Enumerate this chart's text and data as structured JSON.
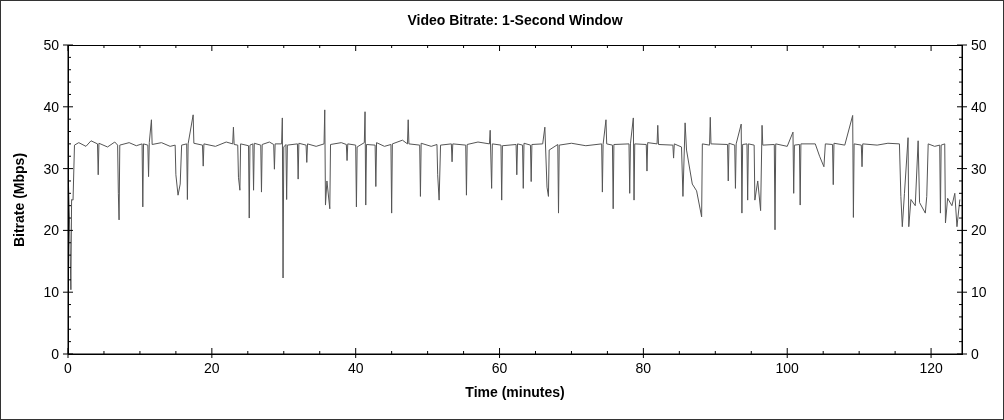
{
  "chart_data": {
    "type": "line",
    "title": "Video Bitrate: 1-Second Window",
    "xlabel": "Time (minutes)",
    "ylabel": "Bitrate (Mbps)",
    "x": [
      0,
      0.2,
      0.4,
      0.5,
      0.7,
      0.9,
      1.5,
      2.5,
      3.2,
      4.1,
      4.2,
      4.3,
      5.5,
      6.5,
      6.9,
      7.0,
      7.1,
      7.2,
      8.5,
      9.5,
      10.3,
      10.4,
      10.5,
      11.1,
      11.2,
      11.3,
      11.6,
      11.7,
      13.0,
      14.2,
      14.9,
      15.0,
      15.3,
      15.6,
      15.8,
      16.5,
      16.6,
      16.7,
      17.4,
      17.5,
      18.7,
      18.8,
      18.9,
      20.5,
      22.0,
      22.9,
      23.0,
      23.1,
      23.6,
      23.7,
      23.9,
      24.0,
      25.1,
      25.2,
      25.3,
      25.7,
      25.8,
      25.9,
      26.8,
      26.9,
      27.0,
      28.0,
      28.6,
      28.7,
      28.8,
      29.7,
      29.8,
      29.9,
      30.0,
      30.3,
      30.4,
      30.5,
      31.9,
      32.0,
      32.1,
      33.1,
      33.2,
      33.3,
      34.5,
      35.6,
      35.7,
      35.8,
      36.0,
      36.4,
      36.5,
      38.0,
      38.7,
      38.8,
      38.9,
      40.0,
      40.1,
      40.2,
      41.2,
      41.3,
      41.4,
      41.5,
      42.7,
      42.8,
      42.9,
      44.0,
      44.9,
      45.0,
      45.1,
      46.5,
      47.2,
      47.3,
      47.4,
      48.9,
      49.0,
      49.1,
      50.5,
      51.3,
      51.4,
      51.6,
      51.8,
      53.3,
      53.4,
      53.5,
      55.3,
      55.4,
      55.5,
      57.0,
      58.6,
      58.7,
      58.9,
      59.0,
      60.2,
      60.3,
      60.4,
      62.3,
      62.4,
      62.5,
      63.2,
      63.3,
      63.4,
      64.3,
      64.4,
      64.5,
      66.0,
      66.3,
      66.6,
      66.8,
      66.9,
      68.1,
      68.2,
      68.3,
      70.0,
      72.0,
      74.2,
      74.3,
      74.4,
      74.8,
      74.9,
      75.7,
      75.8,
      75.9,
      78.0,
      78.1,
      78.2,
      78.6,
      78.7,
      78.8,
      80.4,
      80.5,
      80.6,
      81.9,
      82.0,
      82.1,
      84.1,
      84.2,
      84.3,
      85.3,
      85.5,
      85.8,
      86.0,
      86.8,
      87.4,
      88.1,
      88.2,
      89.2,
      89.3,
      89.4,
      91.7,
      91.8,
      91.9,
      92.7,
      92.8,
      92.9,
      93.6,
      93.7,
      93.8,
      94.4,
      94.5,
      94.6,
      95.4,
      95.5,
      95.9,
      96.3,
      96.5,
      96.6,
      98.2,
      98.3,
      98.4,
      100.0,
      100.8,
      100.9,
      101.0,
      101.7,
      101.8,
      101.9,
      103.9,
      104.5,
      105.1,
      105.3,
      106.3,
      106.4,
      106.5,
      108.0,
      109.1,
      109.2,
      109.3,
      110.3,
      110.4,
      110.5,
      112.5,
      114.0,
      115.6,
      115.8,
      116.0,
      116.3,
      116.8,
      116.9,
      117.2,
      117.8,
      118.2,
      118.4,
      119.2,
      119.4,
      119.6,
      120.5,
      121.2,
      121.3,
      121.4,
      121.9,
      122.0,
      122.3,
      122.9,
      123.3,
      123.6,
      124.0
    ],
    "series": [
      {
        "color": "#555555",
        "values": [
          30,
          22,
          10.4,
          25,
          24.9,
          33.8,
          34.2,
          33.6,
          34.5,
          34.0,
          29.0,
          34.1,
          33.5,
          34.3,
          33.8,
          26.0,
          21.7,
          33.8,
          34.2,
          33.7,
          34.0,
          23.8,
          34.0,
          33.8,
          28.7,
          34.2,
          37.9,
          33.9,
          34.2,
          33.6,
          33.8,
          29.0,
          25.7,
          27.5,
          33.8,
          34.0,
          25.0,
          34.0,
          38.7,
          34.1,
          33.8,
          30.4,
          34.0,
          33.6,
          34.3,
          34.0,
          36.7,
          33.9,
          33.8,
          28.6,
          26.5,
          34.0,
          33.7,
          22.0,
          33.8,
          34.0,
          26.5,
          34.1,
          33.8,
          26.2,
          33.9,
          34.3,
          33.9,
          29.9,
          34.0,
          34.0,
          38.2,
          12.3,
          33.5,
          33.9,
          25.0,
          33.8,
          34.0,
          28.3,
          34.1,
          33.8,
          31.0,
          34.0,
          33.6,
          34.0,
          39.5,
          24.1,
          28.0,
          23.5,
          33.9,
          34.2,
          33.9,
          31.3,
          34.0,
          33.8,
          23.8,
          33.5,
          34.2,
          39.2,
          24.1,
          33.9,
          33.8,
          27.1,
          34.2,
          33.6,
          33.9,
          22.8,
          34.0,
          34.6,
          34.0,
          37.9,
          34.0,
          33.8,
          25.5,
          34.1,
          33.6,
          33.9,
          29.0,
          24.9,
          33.8,
          34.0,
          31.1,
          34.0,
          33.8,
          25.7,
          33.9,
          34.3,
          34.0,
          36.2,
          26.8,
          34.0,
          33.8,
          24.9,
          33.7,
          33.9,
          29.0,
          34.0,
          33.8,
          26.8,
          34.1,
          33.8,
          27.9,
          33.9,
          34.0,
          36.7,
          27.0,
          25.5,
          33.0,
          33.9,
          22.8,
          33.8,
          34.1,
          33.7,
          34.0,
          26.2,
          33.9,
          37.9,
          34.0,
          33.8,
          23.5,
          33.9,
          34.0,
          26.0,
          34.0,
          38.2,
          24.9,
          34.0,
          33.9,
          29.6,
          34.2,
          34.0,
          37.0,
          33.9,
          33.8,
          31.7,
          34.0,
          33.5,
          25.5,
          37.4,
          33.0,
          27.5,
          26.4,
          22.2,
          34.0,
          33.8,
          38.3,
          34.0,
          33.9,
          28.0,
          34.1,
          33.8,
          26.8,
          34.0,
          37.2,
          22.8,
          33.9,
          34.0,
          24.9,
          34.0,
          33.8,
          24.9,
          28,
          23.2,
          37.0,
          33.8,
          33.9,
          20.1,
          34.0,
          33.6,
          35.9,
          26.0,
          33.8,
          33.9,
          24.1,
          34.0,
          34.0,
          32.0,
          30.3,
          34.0,
          33.9,
          27.4,
          34.1,
          33.8,
          38.6,
          22.1,
          34.0,
          33.8,
          30.3,
          34.0,
          33.8,
          34.1,
          34.0,
          25.5,
          20.6,
          26.0,
          35.0,
          20.6,
          25.0,
          24.0,
          34.5,
          24.5,
          22.8,
          25.5,
          34.0,
          33.6,
          33.8,
          22.8,
          33.8,
          34.0,
          21.2,
          25.2,
          24.0,
          26.0,
          20.6,
          25.0
        ]
      }
    ],
    "xlim": [
      0,
      124.3
    ],
    "xticks": [
      0,
      {
        "value": 5,
        "label": null
      },
      {
        "value": 10,
        "label": null
      },
      {
        "value": 15,
        "label": null
      },
      20,
      {
        "value": 25,
        "label": null
      },
      {
        "value": 30,
        "label": null
      },
      {
        "value": 35,
        "label": null
      },
      40,
      {
        "value": 45,
        "label": null
      },
      {
        "value": 50,
        "label": null
      },
      {
        "value": 55,
        "label": null
      },
      60,
      {
        "value": 65,
        "label": null
      },
      {
        "value": 70,
        "label": null
      },
      {
        "value": 75,
        "label": null
      },
      80,
      {
        "value": 85,
        "label": null
      },
      {
        "value": 90,
        "label": null
      },
      {
        "value": 95,
        "label": null
      },
      100,
      {
        "value": 105,
        "label": null
      },
      {
        "value": 110,
        "label": null
      },
      {
        "value": 115,
        "label": null
      },
      120
    ],
    "ylim": [
      0,
      50
    ],
    "yticks": [
      0,
      {
        "value": 2,
        "label": null
      },
      {
        "value": 4,
        "label": null
      },
      {
        "value": 6,
        "label": null
      },
      {
        "value": 8,
        "label": null
      },
      10,
      {
        "value": 12,
        "label": null
      },
      {
        "value": 14,
        "label": null
      },
      {
        "value": 16,
        "label": null
      },
      {
        "value": 18,
        "label": null
      },
      20,
      {
        "value": 22,
        "label": null
      },
      {
        "value": 24,
        "label": null
      },
      {
        "value": 26,
        "label": null
      },
      {
        "value": 28,
        "label": null
      },
      30,
      {
        "value": 32,
        "label": null
      },
      {
        "value": 34,
        "label": null
      },
      {
        "value": 36,
        "label": null
      },
      {
        "value": 38,
        "label": null
      },
      40,
      {
        "value": 42,
        "label": null
      },
      {
        "value": 44,
        "label": null
      },
      {
        "value": 46,
        "label": null
      },
      {
        "value": 48,
        "label": null
      },
      50
    ],
    "y2lim": [
      0,
      50
    ],
    "y2ticks": [
      0,
      {
        "value": 2,
        "label": null
      },
      {
        "value": 4,
        "label": null
      },
      {
        "value": 6,
        "label": null
      },
      {
        "value": 8,
        "label": null
      },
      10,
      {
        "value": 12,
        "label": null
      },
      {
        "value": 14,
        "label": null
      },
      {
        "value": 16,
        "label": null
      },
      {
        "value": 18,
        "label": null
      },
      20,
      {
        "value": 22,
        "label": null
      },
      {
        "value": 24,
        "label": null
      },
      {
        "value": 26,
        "label": null
      },
      {
        "value": 28,
        "label": null
      },
      30,
      {
        "value": 32,
        "label": null
      },
      {
        "value": 34,
        "label": null
      },
      {
        "value": 36,
        "label": null
      },
      {
        "value": 38,
        "label": null
      },
      40,
      {
        "value": 42,
        "label": null
      },
      {
        "value": 44,
        "label": null
      },
      {
        "value": 46,
        "label": null
      },
      {
        "value": 48,
        "label": null
      },
      50
    ],
    "line_style": "solid"
  }
}
